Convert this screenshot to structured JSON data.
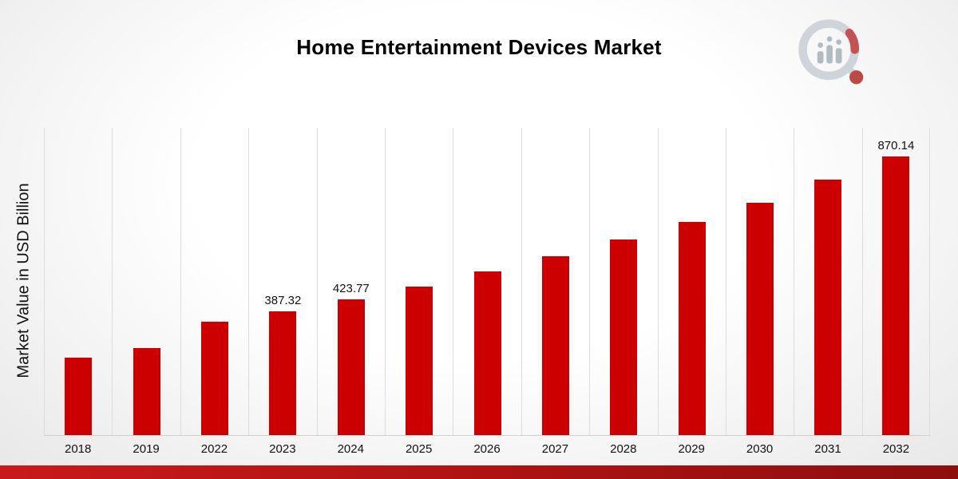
{
  "chart_data": {
    "type": "bar",
    "title": "Home Entertainment Devices Market",
    "xlabel": "",
    "ylabel": "Market Value in USD Billion",
    "ylim": [
      0,
      960
    ],
    "grid": "vertical",
    "legend": "none",
    "bar_color": "#cc0001",
    "categories": [
      "2018",
      "2019",
      "2022",
      "2023",
      "2024",
      "2025",
      "2026",
      "2027",
      "2028",
      "2029",
      "2030",
      "2031",
      "2032"
    ],
    "values": [
      242,
      272,
      354,
      387.32,
      423.77,
      465,
      510,
      558,
      612,
      666,
      726,
      797,
      870.14
    ],
    "data_labels": {
      "2023": "387.32",
      "2024": "423.77",
      "2032": "870.14"
    }
  },
  "branding": {
    "logo_name": "market-research-logo"
  }
}
